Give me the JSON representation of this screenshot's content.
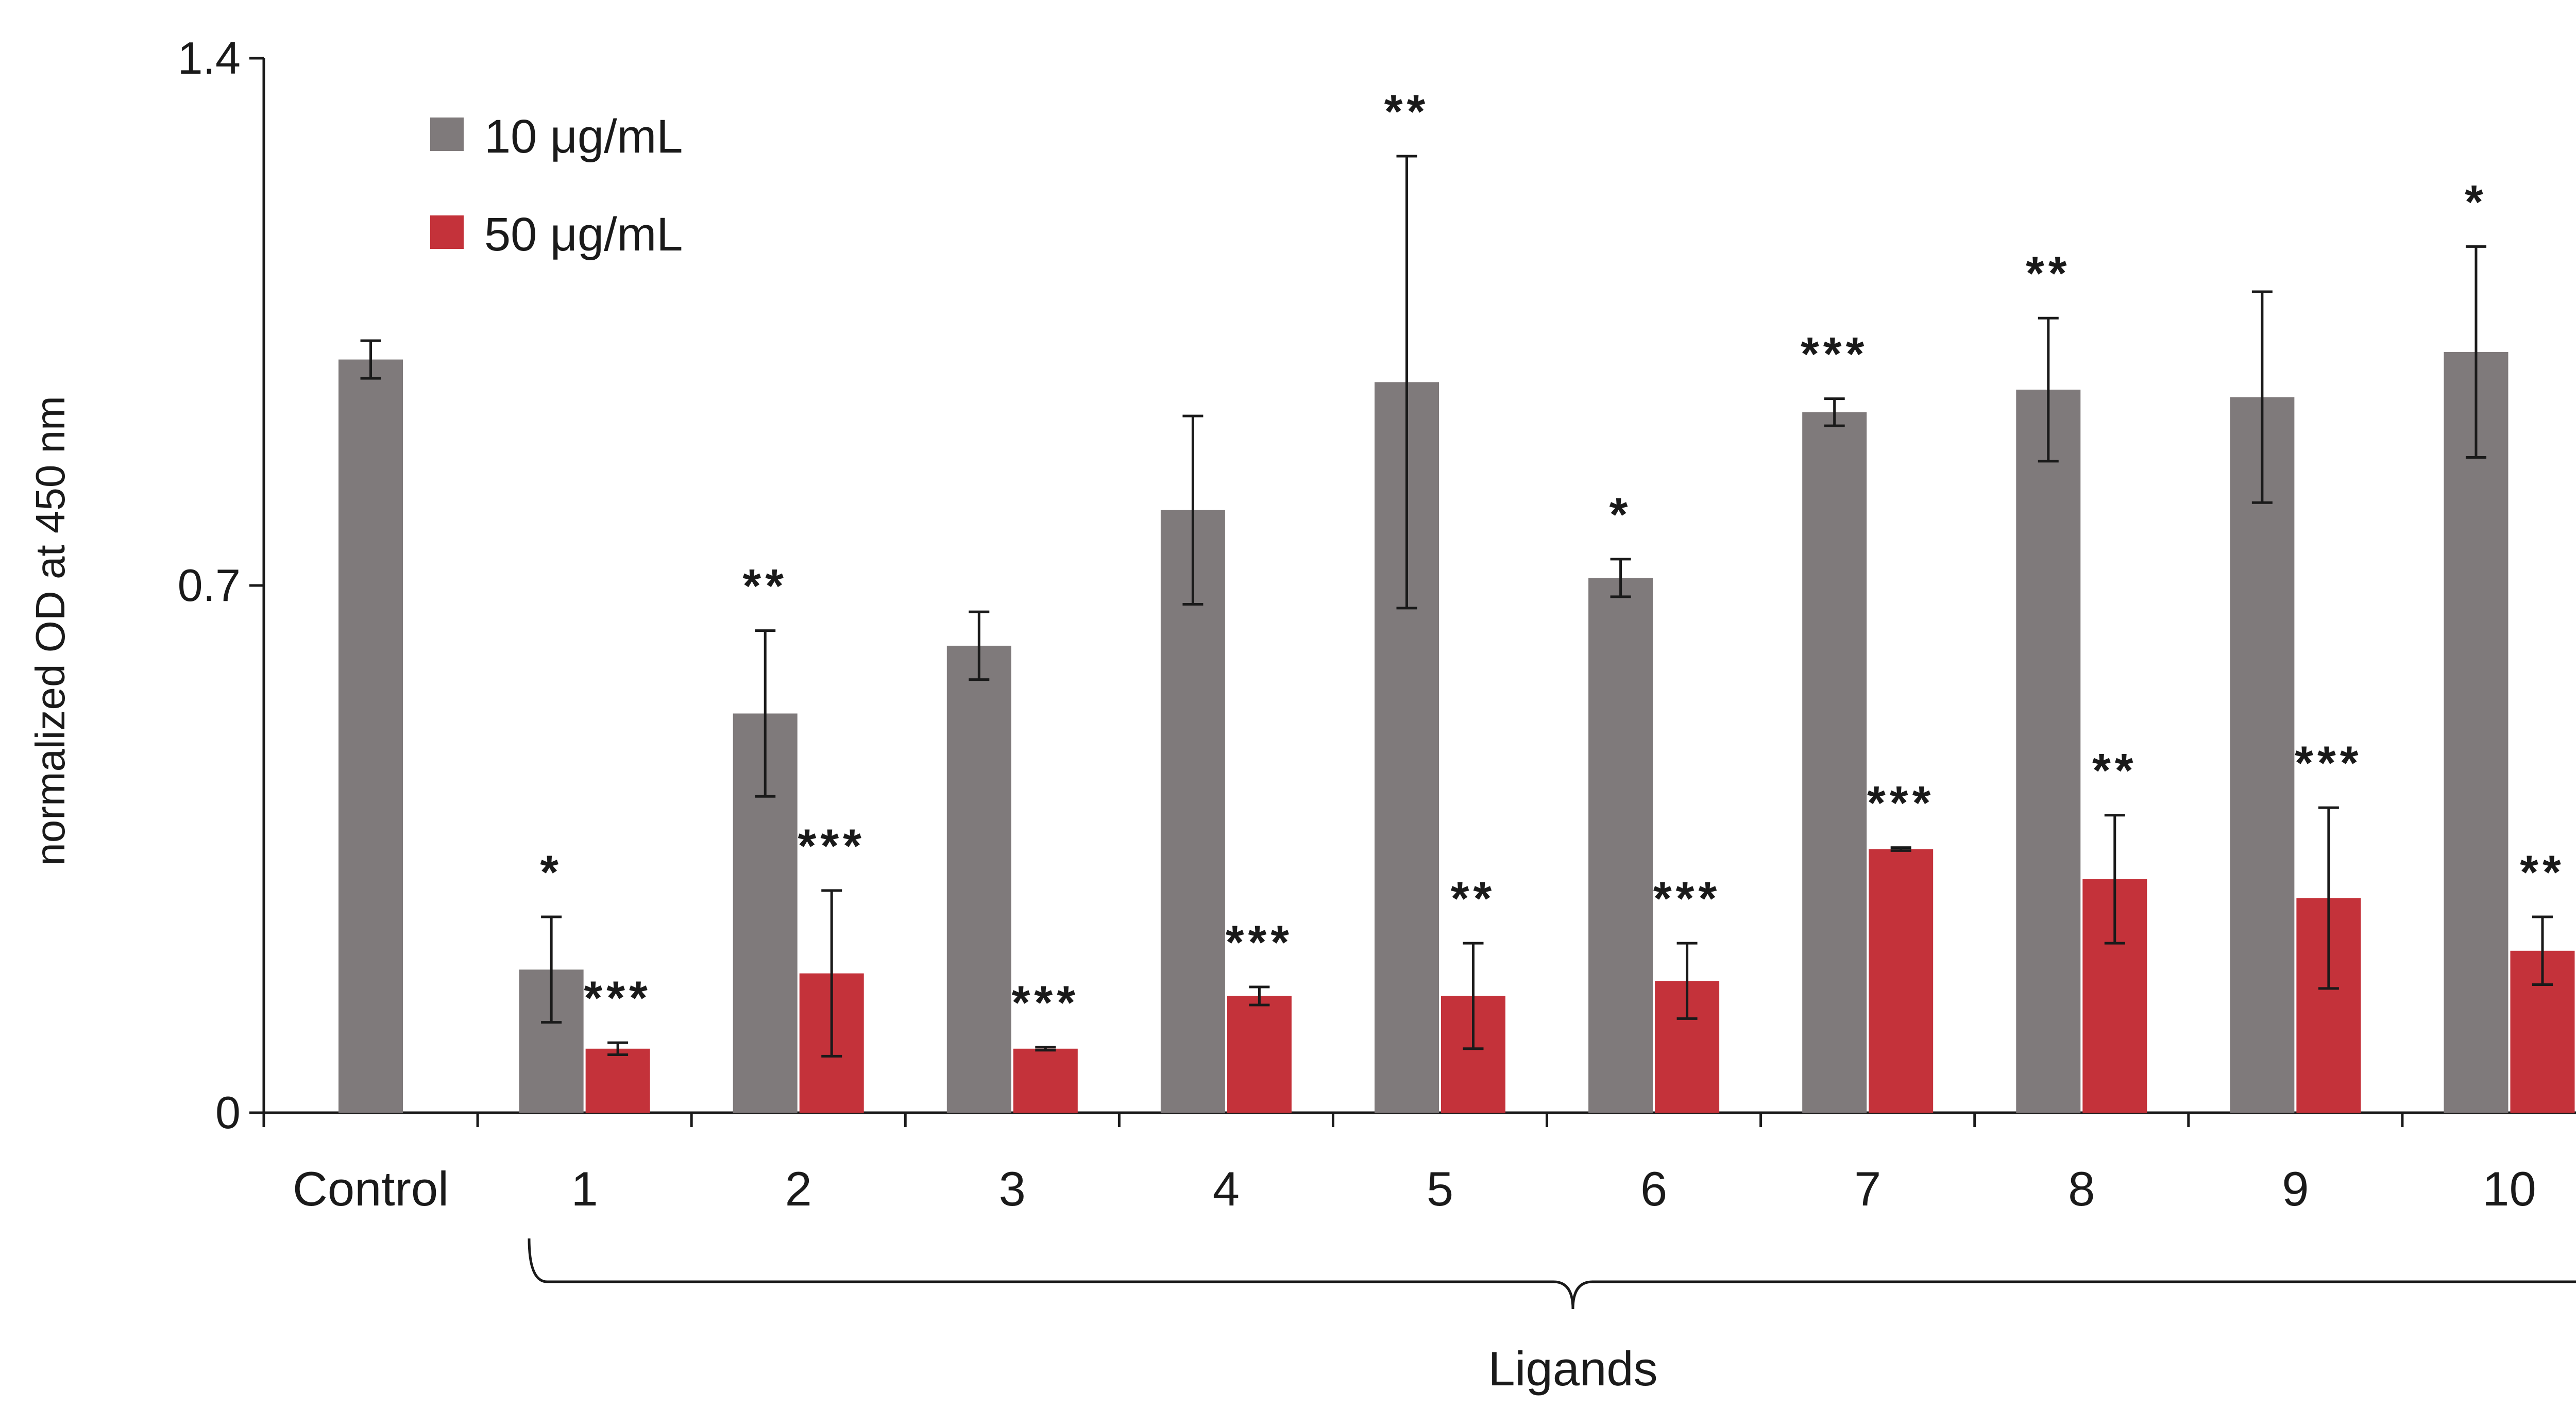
{
  "chart_data": {
    "type": "bar",
    "title": "",
    "xlabel": "Ligands",
    "ylabel": "normalized OD at 450 nm",
    "ylim": [
      0,
      1.4
    ],
    "yticks": [
      "0",
      "0.7",
      "1.4"
    ],
    "categories": [
      "Control",
      "1",
      "2",
      "3",
      "4",
      "5",
      "6",
      "7",
      "8",
      "9",
      "10"
    ],
    "grouped_categories": [
      "1",
      "2",
      "3",
      "4",
      "5",
      "6",
      "7",
      "8",
      "9",
      "10"
    ],
    "legend_position": "top-left",
    "colors": {
      "series1": "#7f7a7b",
      "series2": "#c4323a",
      "axis": "#1a1a1a"
    },
    "series": [
      {
        "name": "10 μg/mL",
        "values": [
          1.0,
          0.19,
          0.53,
          0.62,
          0.8,
          0.97,
          0.71,
          0.93,
          0.96,
          0.95,
          1.01
        ],
        "errors": [
          0.025,
          0.07,
          0.11,
          0.045,
          0.125,
          0.3,
          0.025,
          0.018,
          0.095,
          0.14,
          0.14
        ],
        "significance": [
          "",
          "*",
          "**",
          "",
          "",
          "**",
          "*",
          "***",
          "**",
          "",
          "*"
        ]
      },
      {
        "name": "50 μg/mL",
        "values": [
          null,
          0.085,
          0.185,
          0.085,
          0.155,
          0.155,
          0.175,
          0.35,
          0.31,
          0.285,
          0.215
        ],
        "errors": [
          null,
          0.008,
          0.11,
          0.002,
          0.012,
          0.07,
          0.05,
          0.002,
          0.085,
          0.12,
          0.045
        ],
        "significance": [
          "",
          "***",
          "***",
          "***",
          "***",
          "**",
          "***",
          "***",
          "**",
          "***",
          "**"
        ]
      }
    ]
  }
}
